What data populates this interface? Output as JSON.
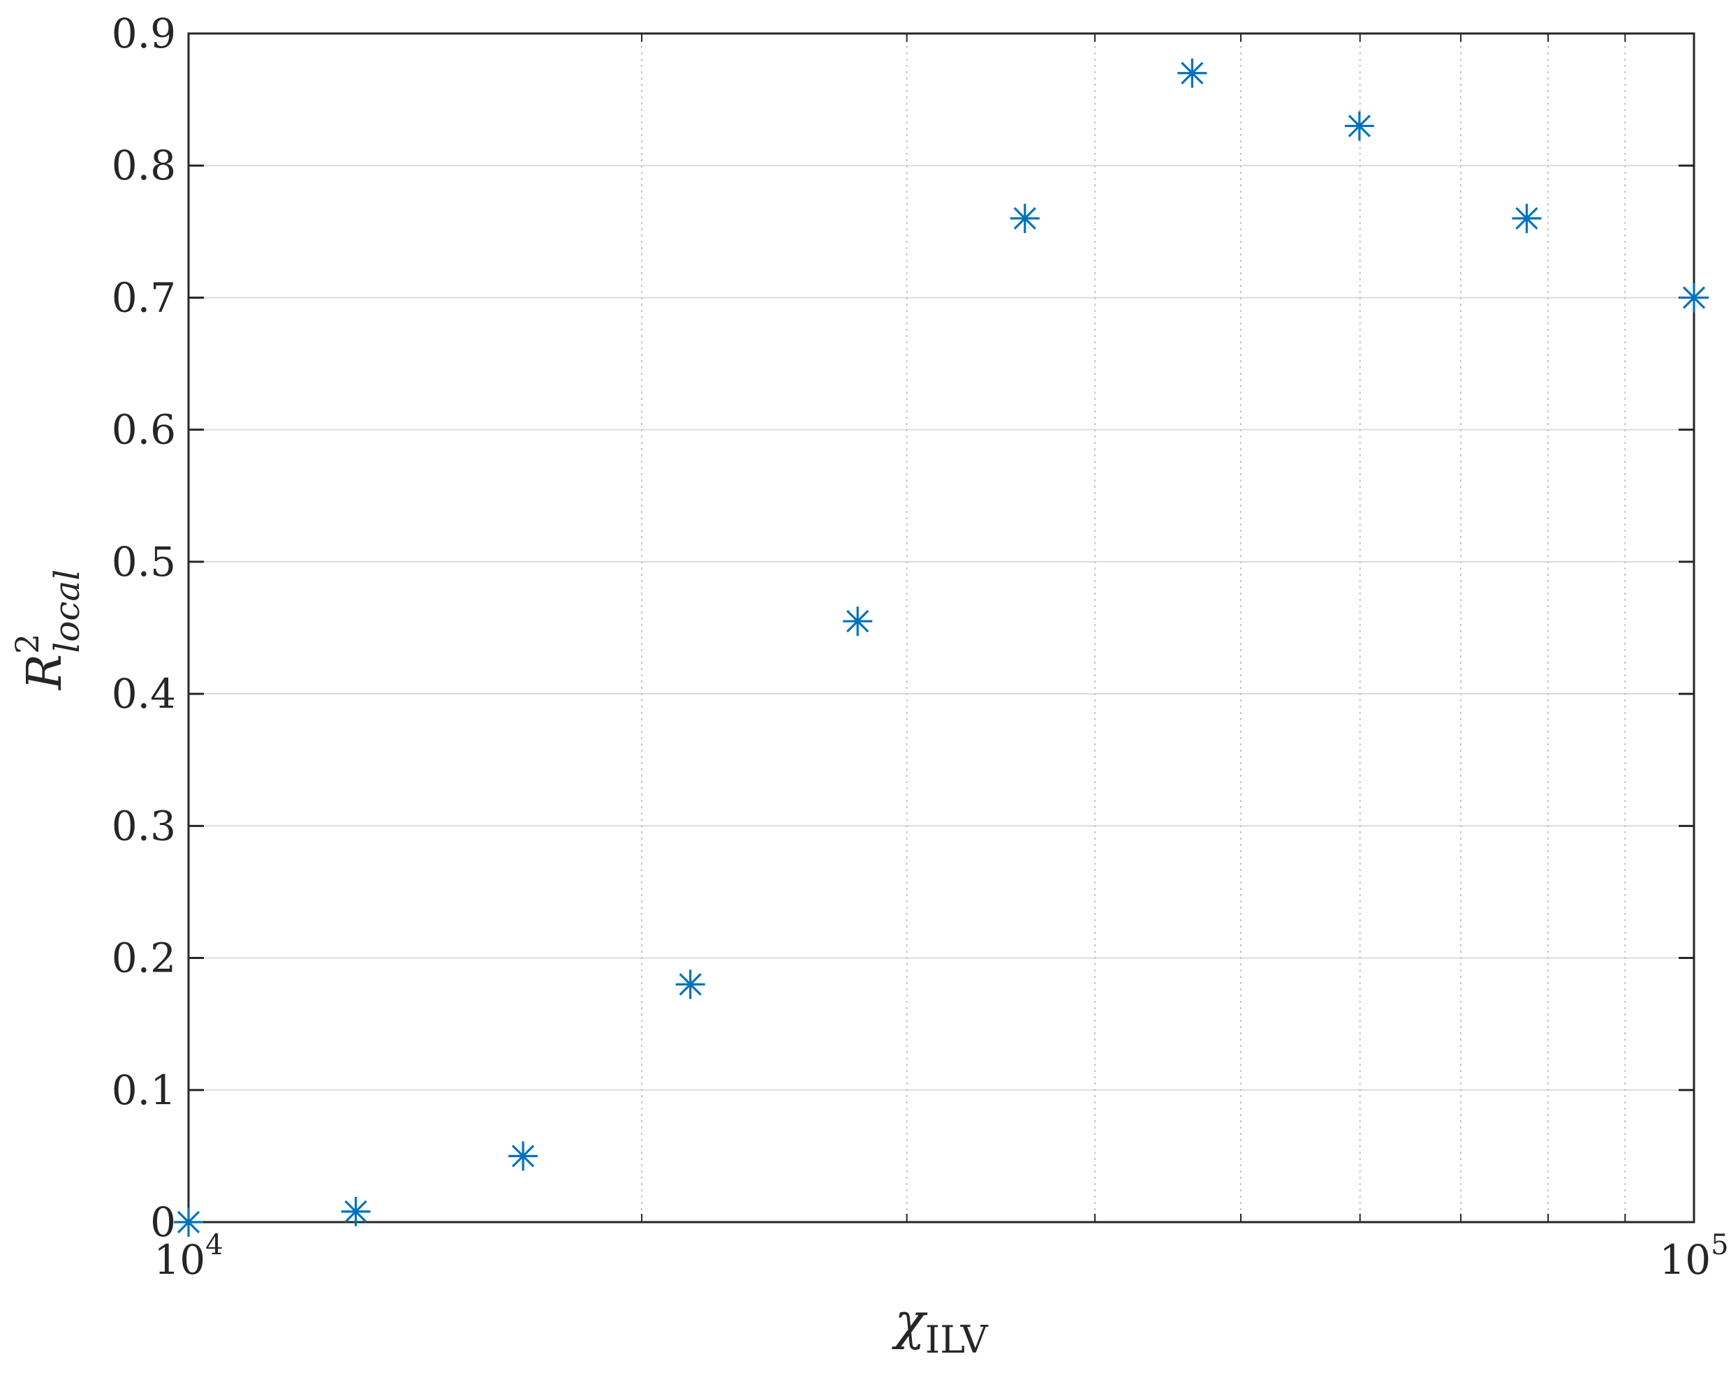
{
  "chart_data": {
    "type": "scatter",
    "marker": "asterisk",
    "color": "#0072BD",
    "x_scale": "log",
    "xlim": [
      10000,
      100000
    ],
    "ylim": [
      0,
      0.9
    ],
    "grid": true,
    "xlabel": {
      "base": "χ",
      "sub": "ILV"
    },
    "ylabel": {
      "base": "R",
      "sup": "2",
      "sub": "local"
    },
    "x_ticks": [
      {
        "value": 10000,
        "base": "10",
        "exp": "4"
      },
      {
        "value": 100000,
        "base": "10",
        "exp": "5"
      }
    ],
    "y_ticks": [
      "0",
      "0.1",
      "0.2",
      "0.3",
      "0.4",
      "0.5",
      "0.6",
      "0.7",
      "0.8",
      "0.9"
    ],
    "series": [
      {
        "points": [
          {
            "x": 10000,
            "y": 0.0
          },
          {
            "x": 12915,
            "y": 0.008
          },
          {
            "x": 16681,
            "y": 0.05
          },
          {
            "x": 21544,
            "y": 0.18
          },
          {
            "x": 27826,
            "y": 0.455
          },
          {
            "x": 35938,
            "y": 0.76
          },
          {
            "x": 46416,
            "y": 0.87
          },
          {
            "x": 59948,
            "y": 0.83
          },
          {
            "x": 77426,
            "y": 0.76
          },
          {
            "x": 100000,
            "y": 0.7
          }
        ]
      }
    ]
  }
}
